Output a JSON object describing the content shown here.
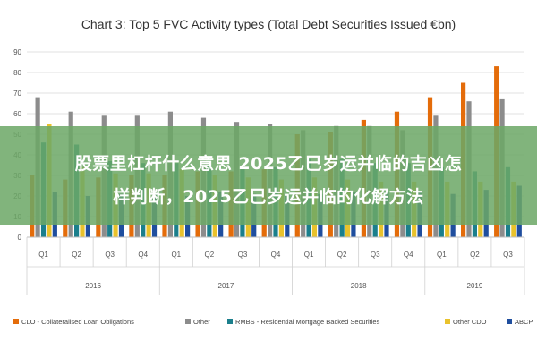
{
  "chart_data": {
    "type": "bar",
    "title": "Chart 3: Top 5 FVC Activity types (Total Debt Securities Issued €bn)",
    "ylim": [
      0,
      90
    ],
    "yticks": [
      0,
      10,
      20,
      30,
      40,
      50,
      60,
      70,
      80,
      90
    ],
    "grid": true,
    "legend_position": "bottom",
    "categories": [
      "Q1",
      "Q2",
      "Q3",
      "Q4",
      "Q1",
      "Q2",
      "Q3",
      "Q4",
      "Q1",
      "Q2",
      "Q3",
      "Q4",
      "Q1",
      "Q2",
      "Q3"
    ],
    "year_groups": [
      {
        "label": "2016",
        "count": 4
      },
      {
        "label": "2017",
        "count": 4
      },
      {
        "label": "2018",
        "count": 4
      },
      {
        "label": "2019",
        "count": 3
      }
    ],
    "series": [
      {
        "name": "CLO - Collateralised Loan Obligations",
        "color": "#e46c0a",
        "values": [
          30,
          28,
          29,
          30,
          30,
          32,
          32,
          33,
          50,
          51,
          57,
          61,
          68,
          75,
          83
        ]
      },
      {
        "name": "Other",
        "color": "#8c8c8c",
        "values": [
          68,
          61,
          59,
          59,
          61,
          58,
          56,
          55,
          52,
          54,
          54,
          52,
          59,
          66,
          67
        ]
      },
      {
        "name": "RMBS - Residential Mortgage Backed Securities",
        "color": "#1b7f8c",
        "values": [
          46,
          45,
          37,
          36,
          36,
          35,
          34,
          34,
          38,
          38,
          36,
          36,
          34,
          32,
          34
        ]
      },
      {
        "name": "Other CDO",
        "color": "#e9c22c",
        "values": [
          55,
          34,
          31,
          31,
          33,
          30,
          29,
          28,
          29,
          28,
          27,
          27,
          27,
          27,
          27
        ]
      },
      {
        "name": "ABCP",
        "color": "#1f4e9e",
        "values": [
          22,
          20,
          21,
          21,
          20,
          22,
          21,
          21,
          21,
          22,
          22,
          22,
          21,
          23,
          25
        ]
      }
    ]
  },
  "overlay": {
    "line1": "股票里杠杆什么意思 2025乙巳岁运并临的吉凶怎",
    "line2": "样判断，2025乙巳岁运并临的化解方法"
  }
}
